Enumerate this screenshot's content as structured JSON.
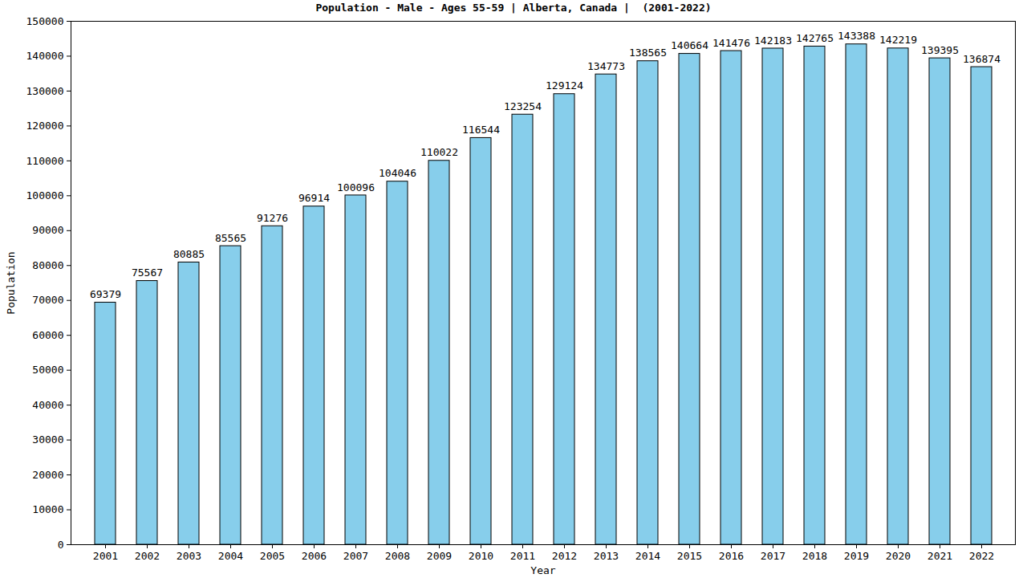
{
  "chart_data": {
    "type": "bar",
    "title": "Population - Male - Ages 55-59 | Alberta, Canada |  (2001-2022)",
    "x_label": "Year",
    "y_label": "Population",
    "categories": [
      "2001",
      "2002",
      "2003",
      "2004",
      "2005",
      "2006",
      "2007",
      "2008",
      "2009",
      "2010",
      "2011",
      "2012",
      "2013",
      "2014",
      "2015",
      "2016",
      "2017",
      "2018",
      "2019",
      "2020",
      "2021",
      "2022"
    ],
    "values": [
      69379,
      75567,
      80885,
      85565,
      91276,
      96914,
      100096,
      104046,
      110022,
      116544,
      123254,
      129124,
      134773,
      138565,
      140664,
      141476,
      142183,
      142765,
      143388,
      142219,
      139395,
      136874
    ],
    "color": "#87ceeb",
    "ylim": [
      0,
      150000
    ],
    "yticks": [
      0,
      10000,
      20000,
      30000,
      40000,
      50000,
      60000,
      70000,
      80000,
      90000,
      100000,
      110000,
      120000,
      130000,
      140000,
      150000
    ],
    "data_labels": true,
    "grid": false
  }
}
